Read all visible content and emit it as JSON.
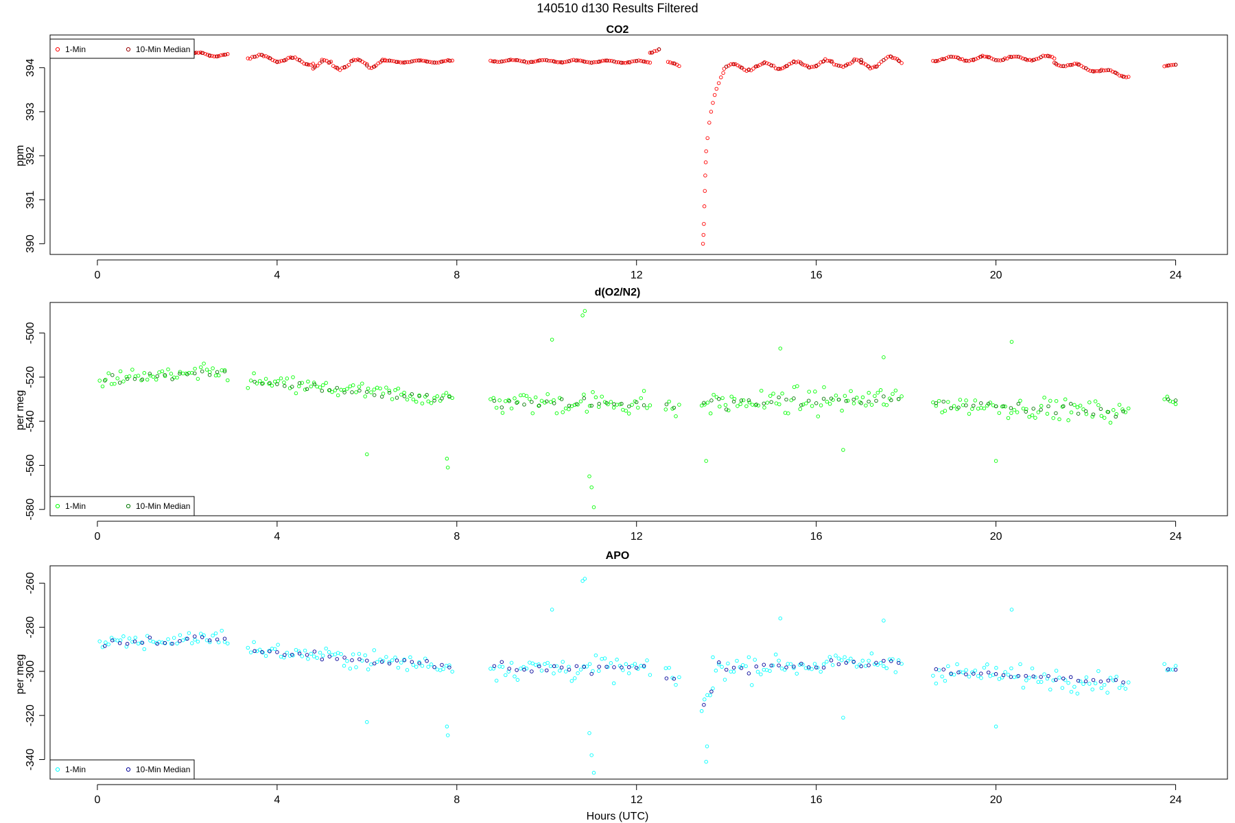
{
  "figure": {
    "title": "140510   d130   Results Filtered",
    "xlabel": "Hours (UTC)"
  },
  "chart_data": [
    {
      "type": "scatter",
      "title": "CO2",
      "ylabel": "ppm",
      "xlim": [
        -0.9,
        25.0
      ],
      "ylim": [
        389.85,
        394.65
      ],
      "xticks": [
        0,
        4,
        8,
        12,
        16,
        20,
        24
      ],
      "yticks": [
        390,
        391,
        392,
        393,
        394
      ],
      "grid": false,
      "legend_position": "top-left",
      "series": [
        {
          "name": "1-Min",
          "color": "#ff0000",
          "segments": [
            {
              "x0": 2.0,
              "x1": 2.9,
              "y_start": 394.32,
              "y_end": 394.28,
              "noise": 0.03
            },
            {
              "x0": 3.35,
              "x1": 4.8,
              "y_start": 394.26,
              "y_end": 394.12,
              "noise": 0.05
            },
            {
              "x0": 4.8,
              "x1": 6.4,
              "y_start": 394.05,
              "y_end": 394.12,
              "noise": 0.08
            },
            {
              "x0": 6.4,
              "x1": 7.9,
              "y_start": 394.14,
              "y_end": 394.14,
              "noise": 0.02
            },
            {
              "x0": 8.75,
              "x1": 12.3,
              "y_start": 394.16,
              "y_end": 394.13,
              "noise": 0.02
            },
            {
              "x0": 12.3,
              "x1": 12.5,
              "y_start": 394.36,
              "y_end": 394.44,
              "noise": 0.03
            },
            {
              "x0": 12.7,
              "x1": 12.95,
              "y_start": 394.1,
              "y_end": 394.05,
              "noise": 0.03
            },
            {
              "x0": 13.95,
              "x1": 17.0,
              "y_start": 394.0,
              "y_end": 394.12,
              "noise": 0.06
            },
            {
              "x0": 17.0,
              "x1": 17.9,
              "y_start": 394.05,
              "y_end": 394.2,
              "noise": 0.08
            },
            {
              "x0": 18.6,
              "x1": 21.3,
              "y_start": 394.2,
              "y_end": 394.22,
              "noise": 0.04
            },
            {
              "x0": 21.3,
              "x1": 22.95,
              "y_start": 394.12,
              "y_end": 393.82,
              "noise": 0.04
            },
            {
              "x0": 23.75,
              "x1": 24.0,
              "y_start": 394.03,
              "y_end": 394.06,
              "noise": 0.01
            }
          ],
          "drop_points": [
            [
              13.48,
              390.0
            ],
            [
              13.49,
              390.2
            ],
            [
              13.5,
              390.45
            ],
            [
              13.51,
              390.85
            ],
            [
              13.52,
              391.2
            ],
            [
              13.53,
              391.55
            ],
            [
              13.54,
              391.85
            ],
            [
              13.55,
              392.1
            ],
            [
              13.58,
              392.4
            ],
            [
              13.62,
              392.75
            ],
            [
              13.66,
              393.0
            ],
            [
              13.7,
              393.2
            ],
            [
              13.74,
              393.38
            ],
            [
              13.78,
              393.52
            ],
            [
              13.83,
              393.65
            ],
            [
              13.88,
              393.78
            ],
            [
              13.93,
              393.88
            ]
          ]
        },
        {
          "name": "10-Min Median",
          "color": "#990000"
        }
      ]
    },
    {
      "type": "scatter",
      "title": "d(O2/N2)",
      "ylabel": "per meg",
      "xlim": [
        -0.9,
        25.0
      ],
      "ylim": [
        -581,
        -488
      ],
      "xticks": [
        0,
        4,
        8,
        12,
        16,
        20,
        24
      ],
      "yticks": [
        -580,
        -560,
        -540,
        -520,
        -500
      ],
      "grid": false,
      "legend_position": "bottom-left",
      "series": [
        {
          "name": "1-Min",
          "color": "#00ff00",
          "segments": [
            {
              "x0": 0.05,
              "x1": 2.9,
              "y_start": -521,
              "y_end": -518,
              "noise": 5
            },
            {
              "x0": 3.35,
              "x1": 7.9,
              "y_start": -522,
              "y_end": -530,
              "noise": 5
            },
            {
              "x0": 8.75,
              "x1": 12.3,
              "y_start": -531,
              "y_end": -532,
              "noise": 7
            },
            {
              "x0": 12.65,
              "x1": 12.95,
              "y_start": -533,
              "y_end": -536,
              "noise": 6
            },
            {
              "x0": 13.45,
              "x1": 17.9,
              "y_start": -532,
              "y_end": -530,
              "noise": 7
            },
            {
              "x0": 18.6,
              "x1": 22.95,
              "y_start": -532,
              "y_end": -536,
              "noise": 6
            },
            {
              "x0": 23.75,
              "x1": 24.0,
              "y_start": -530,
              "y_end": -530,
              "noise": 4
            }
          ],
          "extra_points": [
            [
              10.85,
              -490
            ],
            [
              10.8,
              -492
            ],
            [
              10.12,
              -503
            ],
            [
              11.0,
              -570
            ],
            [
              11.05,
              -579
            ],
            [
              10.95,
              -565
            ],
            [
              20.35,
              -504
            ],
            [
              6.0,
              -555
            ],
            [
              7.8,
              -561
            ],
            [
              7.78,
              -557
            ],
            [
              13.55,
              -558
            ],
            [
              15.2,
              -507
            ],
            [
              16.6,
              -553
            ],
            [
              17.5,
              -511
            ],
            [
              20.0,
              -558
            ]
          ]
        },
        {
          "name": "10-Min Median",
          "color": "#007700"
        }
      ]
    },
    {
      "type": "scatter",
      "title": "APO",
      "ylabel": "per meg",
      "xlim": [
        -0.9,
        25.0
      ],
      "ylim": [
        -347,
        -254
      ],
      "xticks": [
        0,
        4,
        8,
        12,
        16,
        20,
        24
      ],
      "yticks": [
        -340,
        -320,
        -300,
        -280,
        -260
      ],
      "grid": false,
      "legend_position": "bottom-left",
      "series": [
        {
          "name": "1-Min",
          "color": "#00ffff",
          "segments": [
            {
              "x0": 0.05,
              "x1": 2.9,
              "y_start": -288,
              "y_end": -284,
              "noise": 5
            },
            {
              "x0": 3.35,
              "x1": 7.9,
              "y_start": -290,
              "y_end": -298,
              "noise": 5
            },
            {
              "x0": 8.75,
              "x1": 12.3,
              "y_start": -298,
              "y_end": -299,
              "noise": 7
            },
            {
              "x0": 12.65,
              "x1": 12.95,
              "y_start": -302,
              "y_end": -305,
              "noise": 6
            },
            {
              "x0": 13.45,
              "x1": 13.7,
              "y_start": -315,
              "y_end": -308,
              "noise": 5
            },
            {
              "x0": 13.7,
              "x1": 17.9,
              "y_start": -298,
              "y_end": -296,
              "noise": 7
            },
            {
              "x0": 18.6,
              "x1": 22.95,
              "y_start": -300,
              "y_end": -305,
              "noise": 6
            },
            {
              "x0": 23.75,
              "x1": 24.0,
              "y_start": -299,
              "y_end": -299,
              "noise": 4
            }
          ],
          "extra_points": [
            [
              10.85,
              -258
            ],
            [
              10.8,
              -259
            ],
            [
              10.12,
              -272
            ],
            [
              11.0,
              -338
            ],
            [
              11.05,
              -346
            ],
            [
              10.95,
              -328
            ],
            [
              20.35,
              -272
            ],
            [
              6.0,
              -323
            ],
            [
              7.8,
              -329
            ],
            [
              7.78,
              -325
            ],
            [
              13.55,
              -341
            ],
            [
              13.57,
              -334
            ],
            [
              15.2,
              -276
            ],
            [
              16.6,
              -321
            ],
            [
              17.5,
              -277
            ],
            [
              20.0,
              -325
            ]
          ]
        },
        {
          "name": "10-Min Median",
          "color": "#000099"
        }
      ]
    }
  ]
}
